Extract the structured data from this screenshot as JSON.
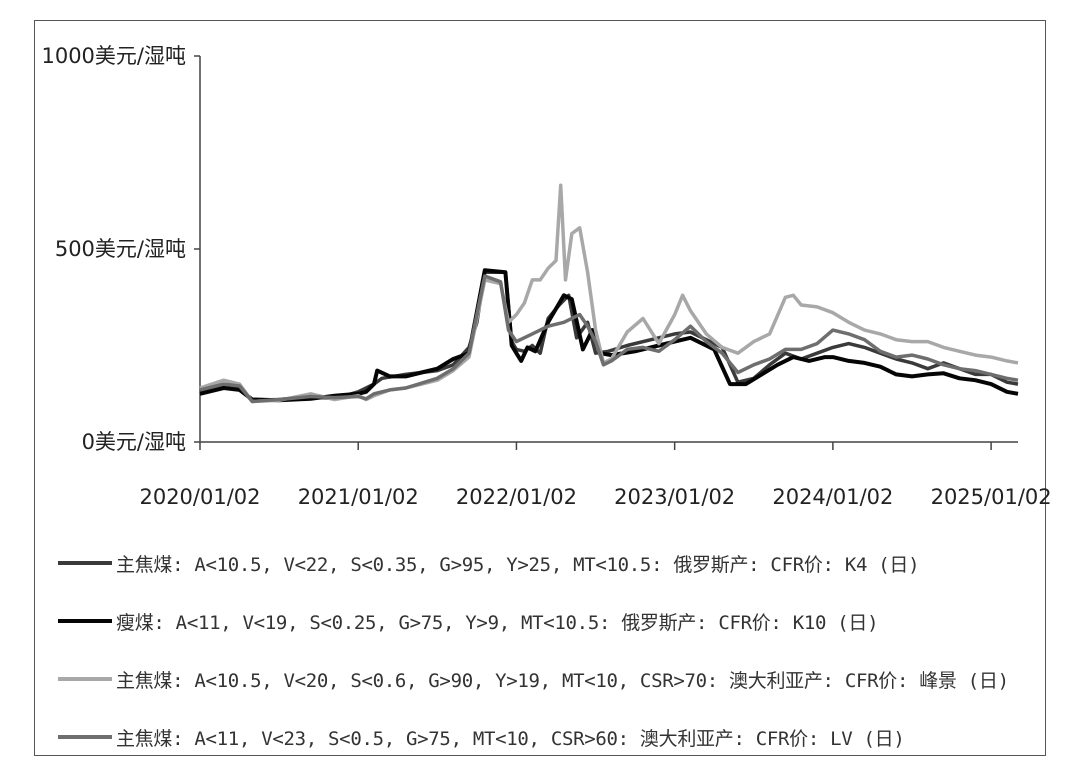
{
  "chart_data": {
    "type": "line",
    "title": "",
    "xlabel": "",
    "ylabel": "",
    "y_ticks": [
      "0美元/湿吨",
      "500美元/湿吨",
      "1000美元/湿吨"
    ],
    "y_tick_values": [
      0,
      500,
      1000
    ],
    "ylim": [
      0,
      1000
    ],
    "x_ticks": [
      "2020/01/02",
      "2021/01/02",
      "2022/01/02",
      "2023/01/02",
      "2024/01/02",
      "2025/01/02"
    ],
    "x_tick_values": [
      2020.0,
      2021.0,
      2022.0,
      2023.0,
      2024.0,
      2025.0
    ],
    "xlim": [
      2020.0,
      2025.17
    ],
    "grid": false,
    "legend_position": "bottom",
    "series": [
      {
        "name": "主焦煤: A<10.5, V<22, S<0.35, G>95, Y>25, MT<10.5: 俄罗斯产: CFR价: K4 (日)",
        "color": "#3a3a3a",
        "points": [
          [
            2020.0,
            130
          ],
          [
            2020.15,
            145
          ],
          [
            2020.25,
            140
          ],
          [
            2020.33,
            108
          ],
          [
            2020.5,
            110
          ],
          [
            2020.7,
            118
          ],
          [
            2020.85,
            112
          ],
          [
            2021.0,
            130
          ],
          [
            2021.05,
            140
          ],
          [
            2021.1,
            150
          ],
          [
            2021.15,
            165
          ],
          [
            2021.3,
            175
          ],
          [
            2021.5,
            185
          ],
          [
            2021.6,
            200
          ],
          [
            2021.7,
            245
          ],
          [
            2021.75,
            310
          ],
          [
            2021.8,
            440
          ],
          [
            2021.93,
            440
          ],
          [
            2021.97,
            260
          ],
          [
            2022.0,
            240
          ],
          [
            2022.05,
            235
          ],
          [
            2022.1,
            250
          ],
          [
            2022.15,
            230
          ],
          [
            2022.2,
            320
          ],
          [
            2022.27,
            355
          ],
          [
            2022.33,
            380
          ],
          [
            2022.38,
            270
          ],
          [
            2022.45,
            310
          ],
          [
            2022.5,
            230
          ],
          [
            2022.58,
            235
          ],
          [
            2022.7,
            250
          ],
          [
            2022.9,
            270
          ],
          [
            2023.0,
            280
          ],
          [
            2023.1,
            285
          ],
          [
            2023.3,
            245
          ],
          [
            2023.4,
            155
          ],
          [
            2023.5,
            165
          ],
          [
            2023.6,
            200
          ],
          [
            2023.7,
            230
          ],
          [
            2023.8,
            215
          ],
          [
            2023.9,
            230
          ],
          [
            2024.0,
            245
          ],
          [
            2024.1,
            255
          ],
          [
            2024.2,
            245
          ],
          [
            2024.3,
            230
          ],
          [
            2024.4,
            215
          ],
          [
            2024.5,
            205
          ],
          [
            2024.6,
            190
          ],
          [
            2024.7,
            205
          ],
          [
            2024.8,
            190
          ],
          [
            2024.9,
            175
          ],
          [
            2025.0,
            175
          ],
          [
            2025.1,
            155
          ],
          [
            2025.17,
            150
          ]
        ]
      },
      {
        "name": "瘦煤: A<11, V<19, S<0.25, G>75, Y>9, MT<10.5: 俄罗斯产: CFR价: K10 (日)",
        "color": "#050505",
        "points": [
          [
            2020.0,
            125
          ],
          [
            2020.15,
            140
          ],
          [
            2020.25,
            135
          ],
          [
            2020.33,
            110
          ],
          [
            2020.5,
            108
          ],
          [
            2020.7,
            112
          ],
          [
            2020.85,
            120
          ],
          [
            2021.0,
            125
          ],
          [
            2021.05,
            130
          ],
          [
            2021.1,
            150
          ],
          [
            2021.12,
            185
          ],
          [
            2021.2,
            170
          ],
          [
            2021.3,
            170
          ],
          [
            2021.4,
            180
          ],
          [
            2021.5,
            190
          ],
          [
            2021.6,
            215
          ],
          [
            2021.7,
            230
          ],
          [
            2021.8,
            445
          ],
          [
            2021.93,
            440
          ],
          [
            2021.97,
            250
          ],
          [
            2022.0,
            230
          ],
          [
            2022.03,
            210
          ],
          [
            2022.07,
            245
          ],
          [
            2022.12,
            235
          ],
          [
            2022.2,
            310
          ],
          [
            2022.3,
            380
          ],
          [
            2022.35,
            370
          ],
          [
            2022.42,
            240
          ],
          [
            2022.48,
            290
          ],
          [
            2022.53,
            230
          ],
          [
            2022.6,
            225
          ],
          [
            2022.75,
            235
          ],
          [
            2022.9,
            250
          ],
          [
            2023.0,
            260
          ],
          [
            2023.1,
            270
          ],
          [
            2023.25,
            240
          ],
          [
            2023.35,
            150
          ],
          [
            2023.45,
            150
          ],
          [
            2023.55,
            175
          ],
          [
            2023.65,
            200
          ],
          [
            2023.75,
            220
          ],
          [
            2023.85,
            210
          ],
          [
            2023.95,
            220
          ],
          [
            2024.0,
            220
          ],
          [
            2024.1,
            210
          ],
          [
            2024.2,
            205
          ],
          [
            2024.3,
            195
          ],
          [
            2024.4,
            175
          ],
          [
            2024.5,
            170
          ],
          [
            2024.6,
            175
          ],
          [
            2024.7,
            178
          ],
          [
            2024.8,
            165
          ],
          [
            2024.9,
            160
          ],
          [
            2025.0,
            150
          ],
          [
            2025.1,
            130
          ],
          [
            2025.17,
            125
          ]
        ]
      },
      {
        "name": "主焦煤: A<10.5, V<20, S<0.6, G>90, Y>19, MT<10, CSR>70: 澳大利亚产: CFR价: 峰景 (日)",
        "color": "#a8a8a8",
        "points": [
          [
            2020.0,
            140
          ],
          [
            2020.15,
            160
          ],
          [
            2020.25,
            150
          ],
          [
            2020.33,
            105
          ],
          [
            2020.5,
            108
          ],
          [
            2020.7,
            125
          ],
          [
            2020.85,
            110
          ],
          [
            2021.0,
            120
          ],
          [
            2021.05,
            110
          ],
          [
            2021.1,
            120
          ],
          [
            2021.2,
            135
          ],
          [
            2021.3,
            140
          ],
          [
            2021.5,
            160
          ],
          [
            2021.6,
            185
          ],
          [
            2021.7,
            220
          ],
          [
            2021.8,
            420
          ],
          [
            2021.9,
            410
          ],
          [
            2021.95,
            310
          ],
          [
            2022.0,
            330
          ],
          [
            2022.05,
            360
          ],
          [
            2022.1,
            420
          ],
          [
            2022.15,
            420
          ],
          [
            2022.2,
            450
          ],
          [
            2022.25,
            470
          ],
          [
            2022.28,
            665
          ],
          [
            2022.31,
            420
          ],
          [
            2022.35,
            540
          ],
          [
            2022.4,
            555
          ],
          [
            2022.45,
            440
          ],
          [
            2022.5,
            290
          ],
          [
            2022.55,
            205
          ],
          [
            2022.6,
            215
          ],
          [
            2022.7,
            285
          ],
          [
            2022.8,
            320
          ],
          [
            2022.9,
            255
          ],
          [
            2023.0,
            330
          ],
          [
            2023.05,
            380
          ],
          [
            2023.1,
            340
          ],
          [
            2023.2,
            280
          ],
          [
            2023.3,
            245
          ],
          [
            2023.4,
            230
          ],
          [
            2023.5,
            260
          ],
          [
            2023.6,
            280
          ],
          [
            2023.7,
            375
          ],
          [
            2023.75,
            380
          ],
          [
            2023.8,
            355
          ],
          [
            2023.9,
            350
          ],
          [
            2024.0,
            335
          ],
          [
            2024.1,
            310
          ],
          [
            2024.2,
            290
          ],
          [
            2024.3,
            280
          ],
          [
            2024.4,
            265
          ],
          [
            2024.5,
            260
          ],
          [
            2024.6,
            260
          ],
          [
            2024.7,
            245
          ],
          [
            2024.8,
            235
          ],
          [
            2024.9,
            225
          ],
          [
            2025.0,
            220
          ],
          [
            2025.1,
            210
          ],
          [
            2025.17,
            205
          ]
        ]
      },
      {
        "name": "主焦煤: A<11, V<23, S<0.5, G>75, MT<10, CSR>60: 澳大利亚产: CFR价: LV (日)",
        "color": "#6e6e6e",
        "points": [
          [
            2020.0,
            135
          ],
          [
            2020.15,
            150
          ],
          [
            2020.25,
            145
          ],
          [
            2020.33,
            105
          ],
          [
            2020.5,
            110
          ],
          [
            2020.7,
            118
          ],
          [
            2020.85,
            115
          ],
          [
            2021.0,
            118
          ],
          [
            2021.05,
            112
          ],
          [
            2021.1,
            125
          ],
          [
            2021.2,
            135
          ],
          [
            2021.3,
            140
          ],
          [
            2021.5,
            165
          ],
          [
            2021.6,
            190
          ],
          [
            2021.7,
            230
          ],
          [
            2021.8,
            430
          ],
          [
            2021.9,
            415
          ],
          [
            2021.95,
            290
          ],
          [
            2022.0,
            260
          ],
          [
            2022.1,
            280
          ],
          [
            2022.2,
            300
          ],
          [
            2022.3,
            310
          ],
          [
            2022.4,
            330
          ],
          [
            2022.45,
            300
          ],
          [
            2022.5,
            260
          ],
          [
            2022.55,
            200
          ],
          [
            2022.6,
            210
          ],
          [
            2022.7,
            240
          ],
          [
            2022.8,
            245
          ],
          [
            2022.9,
            235
          ],
          [
            2023.0,
            265
          ],
          [
            2023.1,
            300
          ],
          [
            2023.2,
            260
          ],
          [
            2023.3,
            230
          ],
          [
            2023.4,
            180
          ],
          [
            2023.5,
            200
          ],
          [
            2023.6,
            215
          ],
          [
            2023.7,
            240
          ],
          [
            2023.8,
            240
          ],
          [
            2023.9,
            255
          ],
          [
            2024.0,
            290
          ],
          [
            2024.1,
            280
          ],
          [
            2024.2,
            265
          ],
          [
            2024.3,
            235
          ],
          [
            2024.4,
            220
          ],
          [
            2024.5,
            225
          ],
          [
            2024.6,
            215
          ],
          [
            2024.7,
            200
          ],
          [
            2024.8,
            190
          ],
          [
            2024.9,
            185
          ],
          [
            2025.0,
            175
          ],
          [
            2025.1,
            165
          ],
          [
            2025.17,
            160
          ]
        ]
      }
    ]
  }
}
